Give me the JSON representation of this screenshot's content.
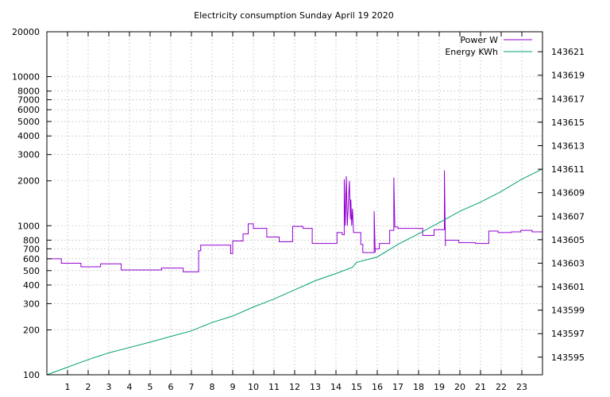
{
  "chart_data": {
    "type": "line",
    "title": "Electricity consumption Sunday April 19 2020",
    "xlabel": "",
    "ylabel": "",
    "y2label": "",
    "xlim": [
      0,
      24
    ],
    "x_ticks": [
      1,
      2,
      3,
      4,
      5,
      6,
      7,
      8,
      9,
      10,
      11,
      12,
      13,
      14,
      15,
      16,
      17,
      18,
      19,
      20,
      21,
      22,
      23
    ],
    "ylim": [
      100,
      20000
    ],
    "y_scale": "log",
    "y_ticks": [
      100,
      200,
      300,
      400,
      500,
      600,
      700,
      800,
      1000,
      2000,
      3000,
      4000,
      5000,
      6000,
      7000,
      8000,
      10000,
      20000
    ],
    "y2lim": [
      143593.5,
      143622.7
    ],
    "y2_ticks": [
      143595,
      143597,
      143599,
      143601,
      143603,
      143605,
      143607,
      143609,
      143611,
      143613,
      143615,
      143617,
      143619,
      143621
    ],
    "grid": true,
    "legend_position": "top-right",
    "series": [
      {
        "name": "Power W",
        "axis": "y",
        "color": "#9400d3",
        "points": [
          [
            0,
            600
          ],
          [
            0.7,
            600
          ],
          [
            0.7,
            560
          ],
          [
            1.65,
            560
          ],
          [
            1.65,
            530
          ],
          [
            2.6,
            530
          ],
          [
            2.6,
            555
          ],
          [
            3.6,
            555
          ],
          [
            3.6,
            505
          ],
          [
            5.55,
            505
          ],
          [
            5.55,
            520
          ],
          [
            6.6,
            520
          ],
          [
            6.6,
            490
          ],
          [
            7.35,
            490
          ],
          [
            7.35,
            680
          ],
          [
            7.45,
            680
          ],
          [
            7.45,
            740
          ],
          [
            8.9,
            740
          ],
          [
            8.9,
            650
          ],
          [
            9.0,
            650
          ],
          [
            9.0,
            790
          ],
          [
            9.5,
            790
          ],
          [
            9.5,
            880
          ],
          [
            9.75,
            880
          ],
          [
            9.75,
            1030
          ],
          [
            10.0,
            1030
          ],
          [
            10.0,
            960
          ],
          [
            10.65,
            960
          ],
          [
            10.65,
            840
          ],
          [
            11.25,
            840
          ],
          [
            11.25,
            780
          ],
          [
            11.9,
            780
          ],
          [
            11.9,
            990
          ],
          [
            12.4,
            990
          ],
          [
            12.4,
            960
          ],
          [
            12.85,
            960
          ],
          [
            12.85,
            760
          ],
          [
            14.05,
            760
          ],
          [
            14.05,
            900
          ],
          [
            14.3,
            900
          ],
          [
            14.3,
            870
          ],
          [
            14.4,
            870
          ],
          [
            14.4,
            2050
          ],
          [
            14.45,
            1000
          ],
          [
            14.5,
            2150
          ],
          [
            14.55,
            1000
          ],
          [
            14.65,
            2000
          ],
          [
            14.7,
            1100
          ],
          [
            14.72,
            1500
          ],
          [
            14.76,
            1000
          ],
          [
            14.8,
            1300
          ],
          [
            14.85,
            900
          ],
          [
            15.2,
            900
          ],
          [
            15.2,
            750
          ],
          [
            15.3,
            750
          ],
          [
            15.3,
            660
          ],
          [
            15.85,
            660
          ],
          [
            15.85,
            1250
          ],
          [
            15.9,
            660
          ],
          [
            15.9,
            700
          ],
          [
            16.1,
            700
          ],
          [
            16.1,
            760
          ],
          [
            16.6,
            760
          ],
          [
            16.6,
            930
          ],
          [
            16.8,
            930
          ],
          [
            16.8,
            2100
          ],
          [
            16.85,
            1000
          ],
          [
            16.85,
            980
          ],
          [
            17.0,
            980
          ],
          [
            17.0,
            960
          ],
          [
            18.2,
            960
          ],
          [
            18.2,
            860
          ],
          [
            18.75,
            860
          ],
          [
            18.75,
            940
          ],
          [
            19.25,
            940
          ],
          [
            19.25,
            2350
          ],
          [
            19.3,
            730
          ],
          [
            19.3,
            800
          ],
          [
            19.95,
            800
          ],
          [
            19.95,
            770
          ],
          [
            20.75,
            770
          ],
          [
            20.75,
            760
          ],
          [
            21.4,
            760
          ],
          [
            21.4,
            920
          ],
          [
            21.85,
            920
          ],
          [
            21.85,
            900
          ],
          [
            22.5,
            900
          ],
          [
            22.5,
            910
          ],
          [
            22.95,
            910
          ],
          [
            22.95,
            930
          ],
          [
            23.5,
            930
          ],
          [
            23.5,
            910
          ],
          [
            24,
            910
          ],
          [
            24,
            1000
          ]
        ]
      },
      {
        "name": "Energy KWh",
        "axis": "y2",
        "color": "#009e73",
        "points": [
          [
            0,
            143593.5
          ],
          [
            1,
            143594.14
          ],
          [
            2,
            143594.79
          ],
          [
            3,
            143595.37
          ],
          [
            4,
            143595.82
          ],
          [
            5,
            143596.28
          ],
          [
            6,
            143596.76
          ],
          [
            7,
            143597.24
          ],
          [
            8,
            143597.95
          ],
          [
            9,
            143598.5
          ],
          [
            10,
            143599.27
          ],
          [
            11,
            143599.95
          ],
          [
            12,
            143600.73
          ],
          [
            13,
            143601.51
          ],
          [
            14,
            143602.12
          ],
          [
            14.8,
            143602.65
          ],
          [
            15,
            143603.07
          ],
          [
            16,
            143603.53
          ],
          [
            17,
            143604.6
          ],
          [
            18,
            143605.5
          ],
          [
            19,
            143606.45
          ],
          [
            20,
            143607.42
          ],
          [
            21,
            143608.2
          ],
          [
            22,
            143609.1
          ],
          [
            23,
            143610.15
          ],
          [
            24,
            143611.02
          ]
        ]
      }
    ]
  }
}
